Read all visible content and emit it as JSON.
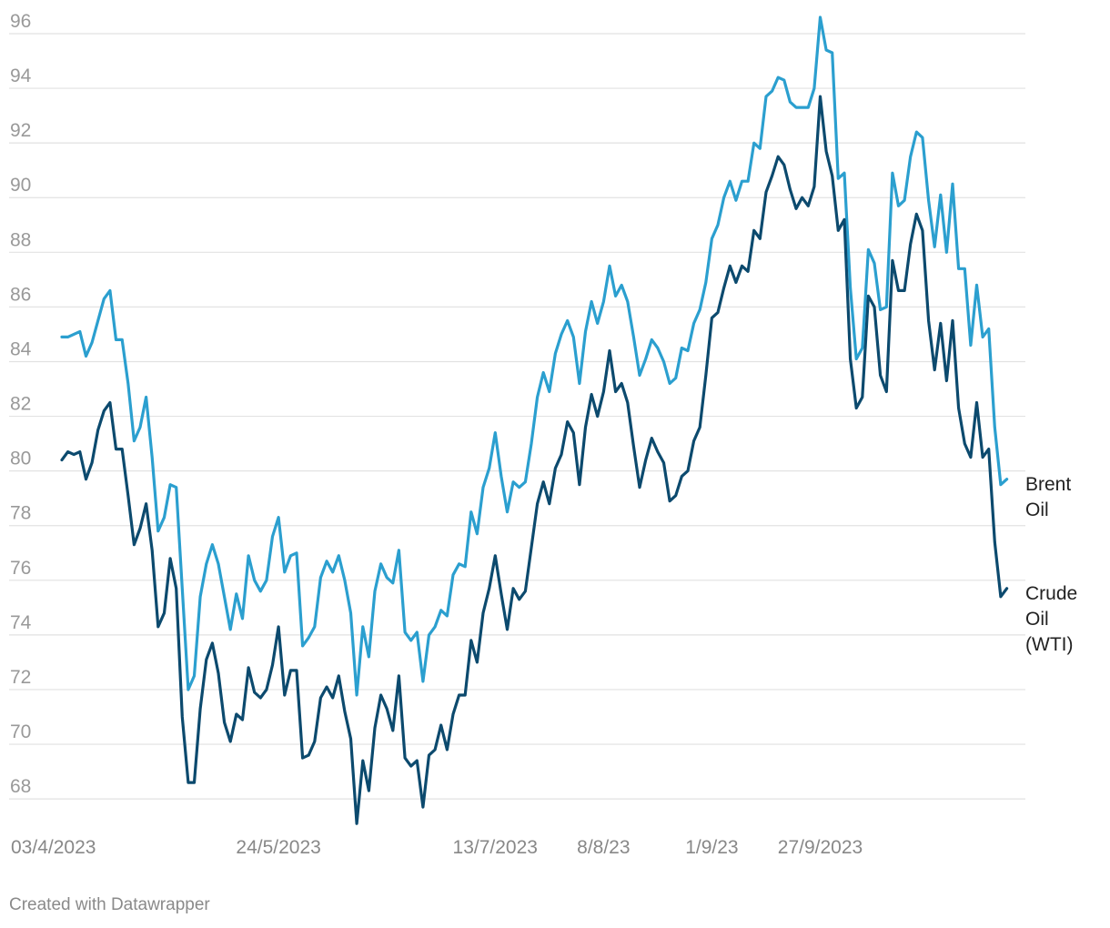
{
  "chart_data": {
    "type": "line",
    "ylim": [
      67,
      97
    ],
    "y_ticks": [
      68,
      70,
      72,
      74,
      76,
      78,
      80,
      82,
      84,
      86,
      88,
      90,
      92,
      94,
      96
    ],
    "x_tick_labels": [
      "03/4/2023",
      "24/5/2023",
      "13/7/2023",
      "8/8/23",
      "1/9/23",
      "27/9/2023"
    ],
    "x_tick_index": [
      0,
      36,
      72,
      90,
      108,
      126
    ],
    "grid": true,
    "legend_placement": "right (inline labels at line ends)",
    "series": [
      {
        "name": "Brent Oil",
        "label_lines": [
          "Brent",
          "Oil"
        ],
        "color": "#2b9fcf",
        "values": [
          84.9,
          84.9,
          85.0,
          85.1,
          84.2,
          84.7,
          85.5,
          86.3,
          86.6,
          84.8,
          84.8,
          83.2,
          81.1,
          81.6,
          82.7,
          80.5,
          77.8,
          78.3,
          79.5,
          79.4,
          75.7,
          72.0,
          72.5,
          75.4,
          76.6,
          77.3,
          76.6,
          75.4,
          74.2,
          75.5,
          74.6,
          76.9,
          76.0,
          75.6,
          76.0,
          77.6,
          78.3,
          76.3,
          76.9,
          77.0,
          73.6,
          73.9,
          74.3,
          76.1,
          76.7,
          76.3,
          76.9,
          76.0,
          74.8,
          71.8,
          74.3,
          73.2,
          75.6,
          76.6,
          76.1,
          75.9,
          77.1,
          74.1,
          73.8,
          74.1,
          72.3,
          74.0,
          74.3,
          74.9,
          74.7,
          76.2,
          76.6,
          76.5,
          78.5,
          77.7,
          79.4,
          80.1,
          81.4,
          79.8,
          78.5,
          79.6,
          79.4,
          79.6,
          81.0,
          82.7,
          83.6,
          82.9,
          84.3,
          85.0,
          85.5,
          84.9,
          83.2,
          85.1,
          86.2,
          85.4,
          86.2,
          87.5,
          86.4,
          86.8,
          86.2,
          84.9,
          83.5,
          84.1,
          84.8,
          84.5,
          84.0,
          83.2,
          83.4,
          84.5,
          84.4,
          85.4,
          85.9,
          86.9,
          88.5,
          89.0,
          90.0,
          90.6,
          89.9,
          90.6,
          90.6,
          92.0,
          91.8,
          93.7,
          93.9,
          94.4,
          94.3,
          93.5,
          93.3,
          93.3,
          93.3,
          94.0,
          96.6,
          95.4,
          95.3,
          90.7,
          90.9,
          86.7,
          84.1,
          84.5,
          88.1,
          87.6,
          85.9,
          86.0,
          90.9,
          89.7,
          89.9,
          91.5,
          92.4,
          92.2,
          89.9,
          88.2,
          90.1,
          88.0,
          90.5,
          87.4,
          87.4,
          84.6,
          86.8,
          84.9,
          85.2,
          81.6,
          79.5,
          79.7
        ],
        "end_value": 79.7
      },
      {
        "name": "Crude Oil (WTI)",
        "label_lines": [
          "Crude",
          "Oil",
          "(WTI)"
        ],
        "color": "#0c4a6e",
        "values": [
          80.4,
          80.7,
          80.6,
          80.7,
          79.7,
          80.3,
          81.5,
          82.2,
          82.5,
          80.8,
          80.8,
          79.1,
          77.3,
          77.9,
          78.8,
          77.1,
          74.3,
          74.8,
          76.8,
          75.7,
          71.0,
          68.6,
          68.6,
          71.3,
          73.1,
          73.7,
          72.6,
          70.8,
          70.1,
          71.1,
          70.9,
          72.8,
          71.9,
          71.7,
          72.0,
          72.9,
          74.3,
          71.8,
          72.7,
          72.7,
          69.5,
          69.6,
          70.1,
          71.7,
          72.1,
          71.7,
          72.5,
          71.2,
          70.2,
          67.1,
          69.4,
          68.3,
          70.6,
          71.8,
          71.3,
          70.5,
          72.5,
          69.5,
          69.2,
          69.4,
          67.7,
          69.6,
          69.8,
          70.7,
          69.8,
          71.1,
          71.8,
          71.8,
          73.8,
          73.0,
          74.8,
          75.7,
          76.9,
          75.5,
          74.2,
          75.7,
          75.3,
          75.6,
          77.2,
          78.8,
          79.6,
          78.8,
          80.1,
          80.6,
          81.8,
          81.4,
          79.5,
          81.6,
          82.8,
          82.0,
          82.9,
          84.4,
          82.9,
          83.2,
          82.5,
          80.9,
          79.4,
          80.4,
          81.2,
          80.7,
          80.3,
          78.9,
          79.1,
          79.8,
          80.0,
          81.1,
          81.6,
          83.5,
          85.6,
          85.8,
          86.7,
          87.5,
          86.9,
          87.5,
          87.3,
          88.8,
          88.5,
          90.2,
          90.8,
          91.5,
          91.2,
          90.3,
          89.6,
          90.0,
          89.7,
          90.4,
          93.7,
          91.7,
          90.8,
          88.8,
          89.2,
          84.1,
          82.3,
          82.7,
          86.4,
          86.0,
          83.5,
          82.9,
          87.7,
          86.6,
          86.6,
          88.3,
          89.4,
          88.8,
          85.5,
          83.7,
          85.4,
          83.3,
          85.5,
          82.3,
          81.0,
          80.5,
          82.5,
          80.5,
          80.8,
          77.4,
          75.4,
          75.7
        ],
        "end_value": 75.7
      }
    ]
  },
  "footer": {
    "credit": "Created with Datawrapper"
  }
}
